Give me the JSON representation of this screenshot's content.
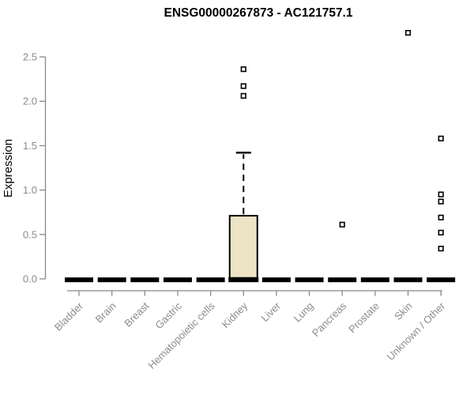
{
  "chart_data": {
    "type": "boxplot",
    "title": "ENSG00000267873 - AC121757.1",
    "ylabel": "Expression",
    "xlabel": "",
    "ylim": [
      0,
      2.5
    ],
    "y_ticks": [
      0,
      0.5,
      1,
      1.5,
      2,
      2.5
    ],
    "y_tick_labels": [
      "0.0",
      "0.5",
      "1.0",
      "1.5",
      "2.0",
      "2.5"
    ],
    "categories": [
      "Bladder",
      "Brain",
      "Breast",
      "Gastric",
      "Hematopoietic cells",
      "Kidney",
      "Liver",
      "Lung",
      "Pancreas",
      "Prostate",
      "Skin",
      "Unknown / Other"
    ],
    "grid": false,
    "legend": null,
    "boxes": [
      {
        "category": "Bladder",
        "whisker_low": 0,
        "q1": 0,
        "median": 0,
        "q3": 0,
        "whisker_high": 0,
        "outliers": []
      },
      {
        "category": "Brain",
        "whisker_low": 0,
        "q1": 0,
        "median": 0,
        "q3": 0,
        "whisker_high": 0,
        "outliers": []
      },
      {
        "category": "Breast",
        "whisker_low": 0,
        "q1": 0,
        "median": 0,
        "q3": 0,
        "whisker_high": 0,
        "outliers": []
      },
      {
        "category": "Gastric",
        "whisker_low": 0,
        "q1": 0,
        "median": 0,
        "q3": 0,
        "whisker_high": 0,
        "outliers": []
      },
      {
        "category": "Hematopoietic cells",
        "whisker_low": 0,
        "q1": 0,
        "median": 0,
        "q3": 0,
        "whisker_high": 0,
        "outliers": []
      },
      {
        "category": "Kidney",
        "whisker_low": 0,
        "q1": 0,
        "median": 0,
        "q3": 0.72,
        "whisker_high": 1.43,
        "outliers": [
          2.07,
          2.18,
          2.37
        ]
      },
      {
        "category": "Liver",
        "whisker_low": 0,
        "q1": 0,
        "median": 0,
        "q3": 0,
        "whisker_high": 0,
        "outliers": []
      },
      {
        "category": "Lung",
        "whisker_low": 0,
        "q1": 0,
        "median": 0,
        "q3": 0,
        "whisker_high": 0,
        "outliers": []
      },
      {
        "category": "Pancreas",
        "whisker_low": 0,
        "q1": 0,
        "median": 0,
        "q3": 0,
        "whisker_high": 0,
        "outliers": [
          0.62
        ]
      },
      {
        "category": "Prostate",
        "whisker_low": 0,
        "q1": 0,
        "median": 0,
        "q3": 0,
        "whisker_high": 0,
        "outliers": []
      },
      {
        "category": "Skin",
        "whisker_low": 0,
        "q1": 0,
        "median": 0,
        "q3": 0,
        "whisker_high": 0,
        "outliers": [
          2.78
        ]
      },
      {
        "category": "Unknown / Other",
        "whisker_low": 0,
        "q1": 0,
        "median": 0,
        "q3": 0,
        "whisker_high": 0,
        "outliers": [
          0.35,
          0.53,
          0.7,
          0.88,
          0.96,
          1.59
        ]
      }
    ],
    "colors": {
      "box_fill": "#ECE4C5",
      "box_border": "#000000",
      "flat_bar": "#000000",
      "axis": "#888888",
      "tick_text": "#8C8C8C",
      "title_text": "#000000",
      "outlier_stroke": "#000000"
    }
  }
}
